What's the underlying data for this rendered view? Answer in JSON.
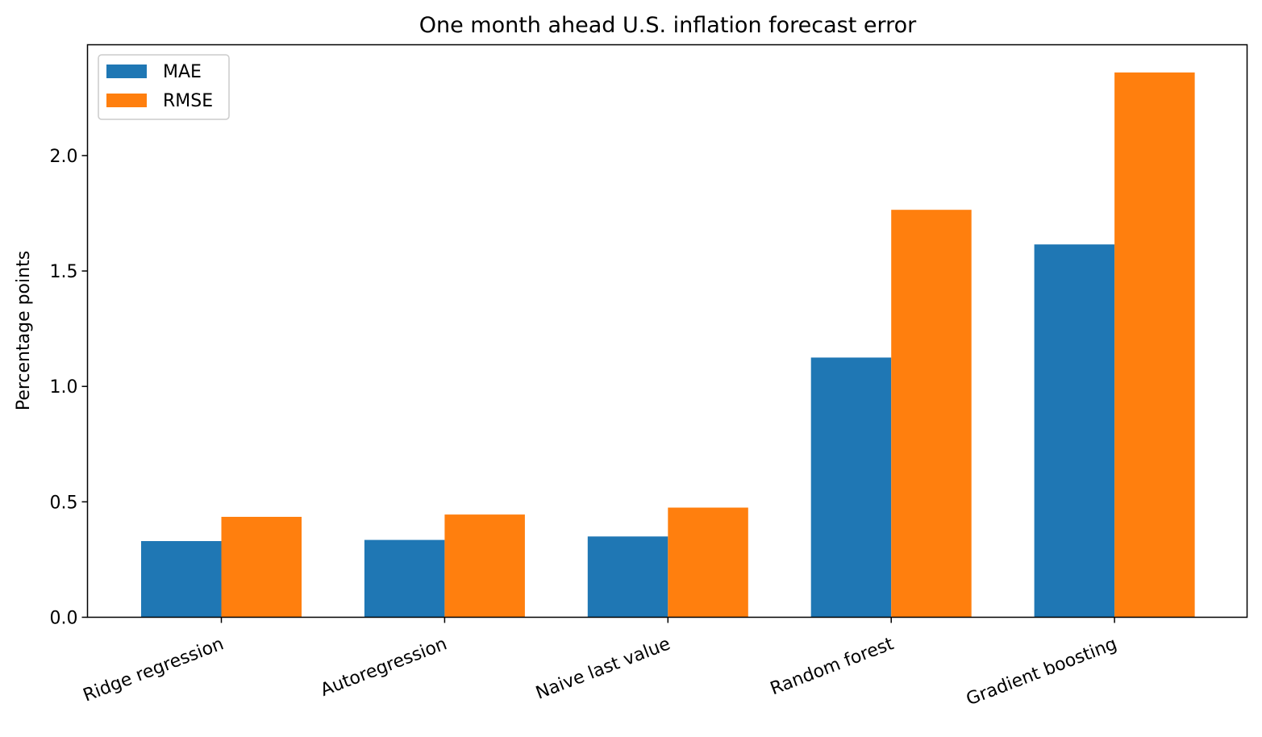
{
  "chart_data": {
    "type": "bar",
    "title": "One month ahead U.S. inflation forecast error",
    "xlabel": "",
    "ylabel": "Percentage points",
    "categories": [
      "Ridge regression",
      "Autoregression",
      "Naive last value",
      "Random forest",
      "Gradient boosting"
    ],
    "series": [
      {
        "name": "MAE",
        "color": "#1f77b4",
        "values": [
          0.33,
          0.335,
          0.35,
          1.125,
          1.615
        ]
      },
      {
        "name": "RMSE",
        "color": "#ff7f0e",
        "values": [
          0.435,
          0.445,
          0.475,
          1.765,
          2.36
        ]
      }
    ],
    "ylim": [
      0,
      2.48
    ],
    "yticks": [
      "0.0",
      "0.5",
      "1.0",
      "1.5",
      "2.0"
    ],
    "legend_position": "top-left",
    "grid": false
  }
}
